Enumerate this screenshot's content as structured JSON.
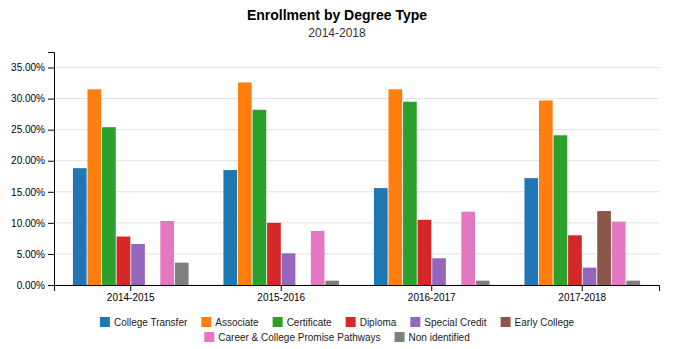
{
  "chart_data": {
    "type": "bar",
    "title": "Enrollment by Degree Type",
    "subtitle": "2014-2018",
    "categories": [
      "2014-2015",
      "2015-2016",
      "2016-2017",
      "2017-2018"
    ],
    "series": [
      {
        "name": "College Transfer",
        "values": [
          0.188,
          0.185,
          0.156,
          0.172
        ]
      },
      {
        "name": "Associate",
        "values": [
          0.315,
          0.326,
          0.315,
          0.297
        ]
      },
      {
        "name": "Certificate",
        "values": [
          0.254,
          0.282,
          0.295,
          0.241
        ]
      },
      {
        "name": "Diploma",
        "values": [
          0.078,
          0.1,
          0.105,
          0.08
        ]
      },
      {
        "name": "Special Credit",
        "values": [
          0.066,
          0.051,
          0.043,
          0.028
        ]
      },
      {
        "name": "Early College",
        "values": [
          0.0,
          0.0,
          0.0,
          0.119
        ]
      },
      {
        "name": "Career & College Promise Pathways",
        "values": [
          0.103,
          0.087,
          0.118,
          0.102
        ]
      },
      {
        "name": "Non identified",
        "values": [
          0.036,
          0.007,
          0.007,
          0.007
        ]
      }
    ],
    "ylim": [
      0,
      0.375
    ],
    "yticks": [
      {
        "value": 0.0,
        "label": "0.00%"
      },
      {
        "value": 0.05,
        "label": "5.00%"
      },
      {
        "value": 0.1,
        "label": "10.00%"
      },
      {
        "value": 0.15,
        "label": "15.00%"
      },
      {
        "value": 0.2,
        "label": "20.00%"
      },
      {
        "value": 0.25,
        "label": "25.00%"
      },
      {
        "value": 0.3,
        "label": "30.00%"
      },
      {
        "value": 0.35,
        "label": "35.00%"
      }
    ],
    "grid": true,
    "legend": "bottom"
  }
}
